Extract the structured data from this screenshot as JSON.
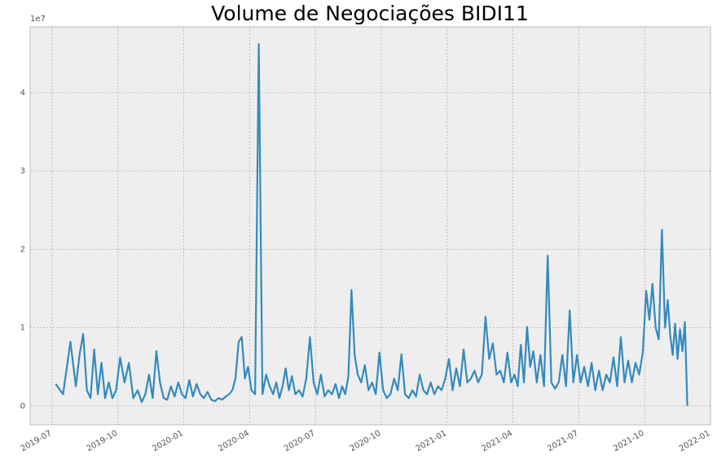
{
  "chart_data": {
    "type": "line",
    "title": "Volume de Negociações BIDI11",
    "y_offset_label": "1e7",
    "color": "#348abd",
    "grid": true,
    "x": [
      "2019-07",
      "2019-07",
      "2019-07",
      "2019-08",
      "2019-08",
      "2019-08",
      "2019-08",
      "2019-08",
      "2019-08",
      "2019-09",
      "2019-09",
      "2019-09",
      "2019-09",
      "2019-09",
      "2019-09",
      "2019-10",
      "2019-10",
      "2019-10",
      "2019-10",
      "2019-10",
      "2019-11",
      "2019-11",
      "2019-11",
      "2019-11",
      "2019-11",
      "2019-11",
      "2019-12",
      "2019-12",
      "2019-12",
      "2019-12",
      "2019-12",
      "2019-12",
      "2020-01",
      "2020-01",
      "2020-01",
      "2020-01",
      "2020-01",
      "2020-01",
      "2020-02",
      "2020-02",
      "2020-02",
      "2020-02",
      "2020-02",
      "2020-02",
      "2020-03",
      "2020-03",
      "2020-03",
      "2020-03",
      "2020-03",
      "2020-03",
      "2020-03",
      "2020-04",
      "2020-04",
      "2020-04",
      "2020-04",
      "2020-04",
      "2020-04",
      "2020-05",
      "2020-05",
      "2020-05",
      "2020-05",
      "2020-05",
      "2020-05",
      "2020-05",
      "2020-06",
      "2020-06",
      "2020-06",
      "2020-06",
      "2020-06",
      "2020-06",
      "2020-07",
      "2020-07",
      "2020-07",
      "2020-07",
      "2020-07",
      "2020-07",
      "2020-08",
      "2020-08",
      "2020-08",
      "2020-08",
      "2020-08",
      "2020-08",
      "2020-08",
      "2020-09",
      "2020-09",
      "2020-09",
      "2020-09",
      "2020-09",
      "2020-09",
      "2020-10",
      "2020-10",
      "2020-10",
      "2020-10",
      "2020-10",
      "2020-10",
      "2020-11",
      "2020-11",
      "2020-11",
      "2020-11",
      "2020-11",
      "2020-11",
      "2020-12",
      "2020-12",
      "2020-12",
      "2020-12",
      "2020-12",
      "2020-12",
      "2021-01",
      "2021-01",
      "2021-01",
      "2021-01",
      "2021-01",
      "2021-01",
      "2021-02",
      "2021-02",
      "2021-02",
      "2021-02",
      "2021-02",
      "2021-02",
      "2021-03",
      "2021-03",
      "2021-03",
      "2021-03",
      "2021-03",
      "2021-03",
      "2021-04",
      "2021-04",
      "2021-04",
      "2021-04",
      "2021-04",
      "2021-04",
      "2021-04",
      "2021-05",
      "2021-05",
      "2021-05",
      "2021-05",
      "2021-05",
      "2021-05",
      "2021-06",
      "2021-06",
      "2021-06",
      "2021-06",
      "2021-06",
      "2021-06",
      "2021-07",
      "2021-07",
      "2021-07",
      "2021-07",
      "2021-07",
      "2021-07",
      "2021-08",
      "2021-08",
      "2021-08",
      "2021-08",
      "2021-08",
      "2021-08",
      "2021-09",
      "2021-09",
      "2021-09",
      "2021-09",
      "2021-09",
      "2021-09",
      "2021-10",
      "2021-10",
      "2021-10",
      "2021-10",
      "2021-10",
      "2021-10",
      "2021-10",
      "2021-11",
      "2021-11",
      "2021-11",
      "2021-11",
      "2021-11",
      "2021-11",
      "2021-11",
      "2021-11",
      "2021-11"
    ],
    "values": [
      0.28,
      0.15,
      0.82,
      0.25,
      0.65,
      0.92,
      0.2,
      0.1,
      0.72,
      0.15,
      0.55,
      0.1,
      0.3,
      0.1,
      0.2,
      0.62,
      0.3,
      0.55,
      0.1,
      0.2,
      0.05,
      0.15,
      0.4,
      0.1,
      0.7,
      0.3,
      0.1,
      0.08,
      0.25,
      0.12,
      0.3,
      0.15,
      0.1,
      0.33,
      0.12,
      0.28,
      0.15,
      0.1,
      0.18,
      0.08,
      0.06,
      0.1,
      0.08,
      0.12,
      0.15,
      0.2,
      0.35,
      0.82,
      0.88,
      0.35,
      0.5,
      0.2,
      0.15,
      4.62,
      0.15,
      0.4,
      0.25,
      0.15,
      0.3,
      0.1,
      0.25,
      0.48,
      0.2,
      0.38,
      0.15,
      0.2,
      0.12,
      0.35,
      0.88,
      0.3,
      0.15,
      0.4,
      0.12,
      0.2,
      0.15,
      0.28,
      0.1,
      0.25,
      0.15,
      0.38,
      1.48,
      0.65,
      0.4,
      0.3,
      0.52,
      0.2,
      0.3,
      0.15,
      0.68,
      0.2,
      0.1,
      0.15,
      0.35,
      0.2,
      0.66,
      0.15,
      0.1,
      0.2,
      0.12,
      0.4,
      0.2,
      0.15,
      0.3,
      0.15,
      0.25,
      0.2,
      0.35,
      0.6,
      0.2,
      0.48,
      0.25,
      0.72,
      0.3,
      0.35,
      0.45,
      0.3,
      0.4,
      1.14,
      0.6,
      0.8,
      0.4,
      0.45,
      0.3,
      0.68,
      0.3,
      0.4,
      0.25,
      0.78,
      0.3,
      1.01,
      0.5,
      0.7,
      0.3,
      0.65,
      0.25,
      1.92,
      0.3,
      0.22,
      0.3,
      0.65,
      0.25,
      1.22,
      0.3,
      0.65,
      0.3,
      0.5,
      0.25,
      0.55,
      0.2,
      0.45,
      0.2,
      0.4,
      0.3,
      0.62,
      0.25,
      0.88,
      0.3,
      0.58,
      0.3,
      0.55,
      0.4,
      0.68,
      1.47,
      1.1,
      1.56,
      1.0,
      0.85,
      2.25,
      1.0,
      1.35,
      0.9,
      0.65,
      1.05,
      0.6,
      0.98,
      0.7,
      1.07,
      0
    ],
    "xlim": [
      "2019-06",
      "2022-01"
    ],
    "xticks": [
      "2019-07",
      "2019-10",
      "2020-01",
      "2020-04",
      "2020-07",
      "2020-10",
      "2021-01",
      "2021-04",
      "2021-07",
      "2021-10",
      "2022-01"
    ],
    "ylim": [
      -0.24,
      4.84
    ],
    "yticks": [
      0,
      1,
      2,
      3,
      4
    ]
  }
}
